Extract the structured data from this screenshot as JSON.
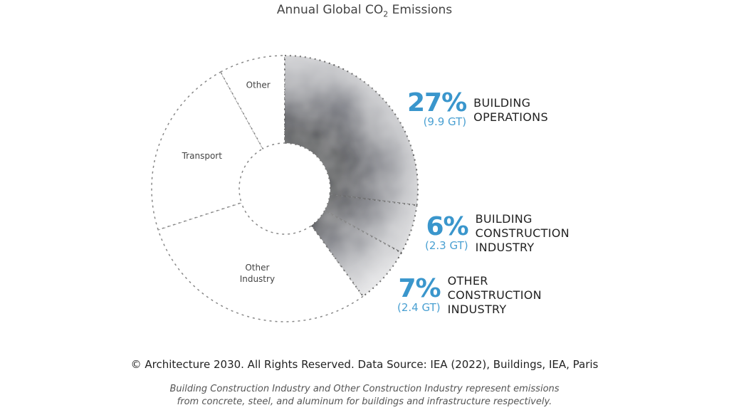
{
  "chart_data": {
    "type": "pie",
    "style": "donut",
    "title": "Annual Global CO",
    "title_subscript": "2",
    "title_suffix": " Emissions",
    "slices": [
      {
        "key": "building_operations",
        "value": 27,
        "label_pct": "27%",
        "label_amount": "(9.9 GT)",
        "label_lines": [
          "BUILDING",
          "OPERATIONS"
        ],
        "highlighted": true
      },
      {
        "key": "building_construction",
        "value": 6,
        "label_pct": "6%",
        "label_amount": "(2.3 GT)",
        "label_lines": [
          "BUILDING",
          "CONSTRUCTION",
          "INDUSTRY"
        ],
        "highlighted": true
      },
      {
        "key": "other_construction",
        "value": 7,
        "label_pct": "7%",
        "label_amount": "(2.4 GT)",
        "label_lines": [
          "OTHER",
          "CONSTRUCTION",
          "INDUSTRY"
        ],
        "highlighted": true
      },
      {
        "key": "other_industry",
        "value": 30,
        "label_lines": [
          "Other",
          "Industry"
        ],
        "highlighted": false
      },
      {
        "key": "transport",
        "value": 22,
        "label_lines": [
          "Transport"
        ],
        "highlighted": false
      },
      {
        "key": "other",
        "value": 8,
        "label_lines": [
          "Other"
        ],
        "highlighted": false
      }
    ],
    "colors": {
      "accent": "#3a96cc",
      "highlight_dark": "#2a2d38",
      "highlight_light": "#e6e6e8",
      "outline": "#888888"
    }
  },
  "footer": {
    "credit": "© Architecture 2030. All Rights Reserved. Data Source: IEA (2022), Buildings, IEA, Paris",
    "note_line1": "Building Construction Industry and Other Construction Industry represent emissions",
    "note_line2": "from concrete, steel, and aluminum for buildings and infrastructure respectively."
  }
}
